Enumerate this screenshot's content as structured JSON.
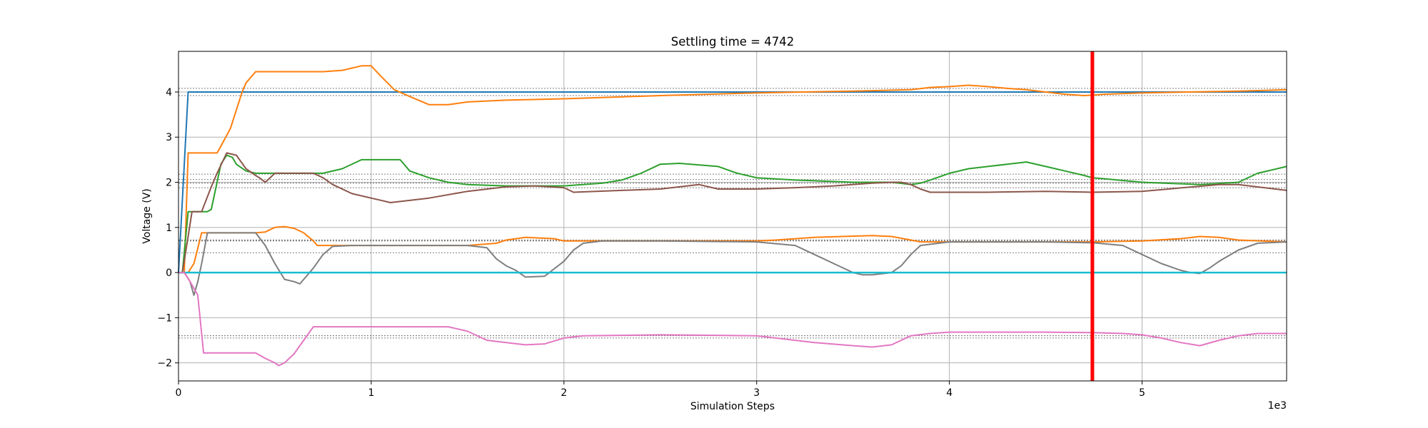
{
  "chart_data": {
    "type": "line",
    "title": "Settling time = 4742",
    "xlabel": "Simulation Steps",
    "ylabel": "Voltage (V)",
    "x_scale_label": "1e3",
    "xlim": [
      0,
      5.75
    ],
    "ylim": [
      -2.4,
      4.9
    ],
    "x_ticks": [
      0,
      1,
      2,
      3,
      4,
      5
    ],
    "x_tick_labels": [
      "0",
      "1",
      "2",
      "3",
      "4",
      "5"
    ],
    "y_ticks": [
      -2,
      -1,
      0,
      1,
      2,
      3,
      4
    ],
    "y_tick_labels": [
      "−2",
      "−1",
      "0",
      "1",
      "2",
      "3",
      "4"
    ],
    "grid": true,
    "settling_marker": {
      "x": 4.742,
      "color": "#ff0000"
    },
    "reference_lines": [
      4.08,
      3.92,
      2.18,
      2.06,
      1.98,
      1.88,
      0.72,
      0.7,
      0.44,
      -1.4,
      -1.45
    ],
    "series": [
      {
        "color": "#1f77b4",
        "x": [
          0,
          0.05,
          0.06,
          5.75
        ],
        "y": [
          0,
          4.0,
          4.0,
          4.0
        ]
      },
      {
        "color": "#ff7f0e",
        "x": [
          0,
          0.03,
          0.05,
          0.2,
          0.22,
          0.27,
          0.3,
          0.33,
          0.35,
          0.4,
          0.6,
          0.75,
          0.85,
          0.95,
          1.0,
          1.05,
          1.12,
          1.2,
          1.3,
          1.4,
          1.5,
          1.7,
          2.0,
          2.5,
          3.0,
          3.5,
          3.8,
          3.9,
          4.0,
          4.1,
          4.2,
          4.3,
          4.4,
          4.5,
          4.6,
          4.7,
          4.742,
          4.8,
          5.0,
          5.5,
          5.75
        ],
        "y": [
          0,
          0,
          2.65,
          2.65,
          2.8,
          3.2,
          3.6,
          4.0,
          4.2,
          4.45,
          4.45,
          4.45,
          4.48,
          4.58,
          4.58,
          4.35,
          4.05,
          3.9,
          3.72,
          3.72,
          3.78,
          3.82,
          3.85,
          3.92,
          3.98,
          4.02,
          4.05,
          4.1,
          4.12,
          4.15,
          4.12,
          4.08,
          4.05,
          4.0,
          3.95,
          3.92,
          3.93,
          3.95,
          3.98,
          4.02,
          4.05
        ]
      },
      {
        "color": "#2ca02c",
        "x": [
          0,
          0.02,
          0.05,
          0.1,
          0.15,
          0.17,
          0.2,
          0.22,
          0.25,
          0.28,
          0.3,
          0.35,
          0.4,
          0.55,
          0.75,
          0.85,
          0.95,
          1.15,
          1.2,
          1.3,
          1.4,
          1.5,
          1.7,
          2.0,
          2.2,
          2.3,
          2.4,
          2.5,
          2.6,
          2.8,
          2.9,
          3.0,
          3.2,
          3.5,
          3.7,
          3.8,
          3.85,
          3.9,
          4.0,
          4.1,
          4.2,
          4.3,
          4.4,
          4.5,
          4.6,
          4.7,
          4.742,
          4.8,
          5.0,
          5.3,
          5.5,
          5.6,
          5.75
        ],
        "y": [
          0,
          0,
          1.35,
          1.35,
          1.35,
          1.4,
          2.0,
          2.4,
          2.6,
          2.55,
          2.4,
          2.25,
          2.2,
          2.2,
          2.2,
          2.3,
          2.5,
          2.5,
          2.25,
          2.1,
          2.0,
          1.95,
          1.92,
          1.92,
          1.98,
          2.05,
          2.2,
          2.4,
          2.42,
          2.35,
          2.2,
          2.1,
          2.05,
          2.0,
          2.0,
          1.95,
          1.98,
          2.05,
          2.2,
          2.3,
          2.35,
          2.4,
          2.45,
          2.35,
          2.25,
          2.15,
          2.1,
          2.08,
          2.0,
          1.95,
          2.0,
          2.2,
          2.35
        ]
      },
      {
        "color": "#8c564b",
        "x": [
          0,
          0.02,
          0.05,
          0.07,
          0.1,
          0.12,
          0.17,
          0.2,
          0.25,
          0.3,
          0.35,
          0.4,
          0.42,
          0.45,
          0.5,
          0.7,
          0.75,
          0.8,
          0.9,
          1.0,
          1.05,
          1.1,
          1.3,
          1.5,
          1.7,
          1.85,
          2.0,
          2.05,
          2.3,
          2.5,
          2.6,
          2.7,
          2.8,
          3.0,
          3.2,
          3.4,
          3.6,
          3.7,
          3.75,
          3.8,
          3.85,
          3.9,
          4.2,
          4.5,
          4.742,
          5.0,
          5.4,
          5.5,
          5.75
        ],
        "y": [
          0,
          0,
          0.8,
          1.35,
          1.35,
          1.35,
          1.9,
          2.2,
          2.65,
          2.6,
          2.3,
          2.15,
          2.1,
          2.0,
          2.2,
          2.2,
          2.1,
          1.95,
          1.75,
          1.65,
          1.6,
          1.55,
          1.65,
          1.8,
          1.9,
          1.92,
          1.88,
          1.78,
          1.82,
          1.85,
          1.9,
          1.95,
          1.85,
          1.85,
          1.88,
          1.92,
          1.98,
          2.0,
          2.0,
          1.95,
          1.85,
          1.78,
          1.78,
          1.8,
          1.78,
          1.8,
          1.95,
          1.95,
          1.82
        ]
      },
      {
        "color": "#ff7f0e",
        "x": [
          0,
          0.05,
          0.08,
          0.12,
          0.4,
          0.45,
          0.5,
          0.55,
          0.6,
          0.65,
          0.7,
          0.72,
          0.75,
          1.0,
          1.5,
          1.65,
          1.7,
          1.8,
          1.95,
          2.0,
          2.05,
          2.5,
          3.0,
          3.1,
          3.3,
          3.6,
          3.7,
          3.8,
          3.85,
          4.0,
          4.5,
          4.742,
          5.0,
          5.2,
          5.3,
          5.4,
          5.5,
          5.75
        ],
        "y": [
          0,
          0,
          0.2,
          0.88,
          0.88,
          0.9,
          1.0,
          1.02,
          0.98,
          0.88,
          0.7,
          0.6,
          0.6,
          0.6,
          0.6,
          0.65,
          0.72,
          0.78,
          0.75,
          0.7,
          0.7,
          0.7,
          0.7,
          0.72,
          0.78,
          0.82,
          0.8,
          0.72,
          0.68,
          0.68,
          0.68,
          0.68,
          0.7,
          0.75,
          0.8,
          0.78,
          0.72,
          0.68
        ]
      },
      {
        "color": "#7f7f7f",
        "x": [
          0,
          0.03,
          0.06,
          0.08,
          0.1,
          0.12,
          0.15,
          0.4,
          0.45,
          0.5,
          0.55,
          0.6,
          0.63,
          0.65,
          0.7,
          0.75,
          0.8,
          0.9,
          1.2,
          1.5,
          1.6,
          1.65,
          1.7,
          1.75,
          1.8,
          1.9,
          2.0,
          2.05,
          2.1,
          2.2,
          2.5,
          3.0,
          3.2,
          3.3,
          3.4,
          3.5,
          3.55,
          3.6,
          3.7,
          3.75,
          3.8,
          3.85,
          4.0,
          4.5,
          4.742,
          4.9,
          5.0,
          5.1,
          5.2,
          5.25,
          5.3,
          5.35,
          5.4,
          5.5,
          5.6,
          5.75
        ],
        "y": [
          0,
          0,
          -0.2,
          -0.5,
          -0.2,
          0.2,
          0.88,
          0.88,
          0.6,
          0.2,
          -0.15,
          -0.2,
          -0.25,
          -0.15,
          0.1,
          0.4,
          0.58,
          0.6,
          0.6,
          0.6,
          0.55,
          0.3,
          0.15,
          0.05,
          -0.1,
          -0.08,
          0.25,
          0.5,
          0.65,
          0.7,
          0.7,
          0.68,
          0.6,
          0.4,
          0.2,
          0.0,
          -0.05,
          -0.05,
          0.0,
          0.15,
          0.4,
          0.6,
          0.68,
          0.68,
          0.66,
          0.6,
          0.4,
          0.2,
          0.05,
          0.0,
          -0.02,
          0.1,
          0.25,
          0.5,
          0.65,
          0.68
        ]
      },
      {
        "color": "#17becf",
        "x": [
          0,
          5.75
        ],
        "y": [
          0.0,
          0.0
        ]
      },
      {
        "color": "#e377c2",
        "x": [
          0,
          0.03,
          0.06,
          0.1,
          0.13,
          0.4,
          0.45,
          0.5,
          0.52,
          0.55,
          0.6,
          0.65,
          0.7,
          0.75,
          1.0,
          1.4,
          1.5,
          1.6,
          1.7,
          1.8,
          1.9,
          2.0,
          2.1,
          2.5,
          3.0,
          3.1,
          3.3,
          3.5,
          3.6,
          3.7,
          3.8,
          3.9,
          4.0,
          4.5,
          4.742,
          4.9,
          5.0,
          5.1,
          5.2,
          5.3,
          5.4,
          5.5,
          5.6,
          5.75
        ],
        "y": [
          0,
          0,
          -0.2,
          -0.5,
          -1.78,
          -1.78,
          -1.9,
          -2.0,
          -2.06,
          -2.0,
          -1.8,
          -1.5,
          -1.2,
          -1.2,
          -1.2,
          -1.2,
          -1.3,
          -1.5,
          -1.55,
          -1.6,
          -1.58,
          -1.45,
          -1.4,
          -1.38,
          -1.4,
          -1.45,
          -1.55,
          -1.62,
          -1.65,
          -1.6,
          -1.4,
          -1.35,
          -1.32,
          -1.32,
          -1.33,
          -1.35,
          -1.38,
          -1.45,
          -1.55,
          -1.62,
          -1.5,
          -1.4,
          -1.35,
          -1.35
        ]
      }
    ]
  }
}
